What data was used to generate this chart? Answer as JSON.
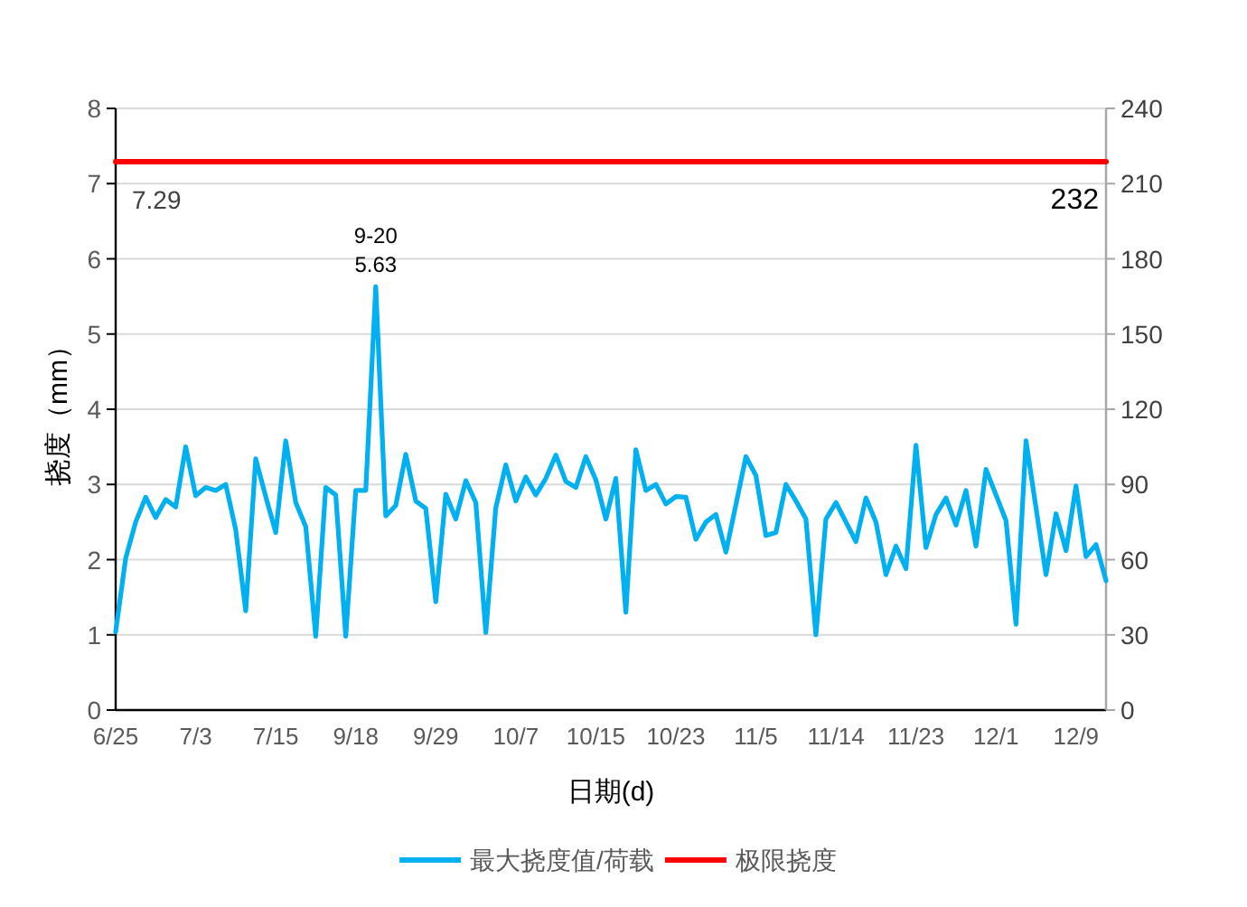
{
  "chart_data": {
    "type": "line",
    "xlabel": "日期(d)",
    "ylabel": "挠度（mm）",
    "categories": [
      "6/25",
      null,
      null,
      null,
      null,
      null,
      null,
      null,
      "7/3",
      null,
      null,
      null,
      null,
      null,
      null,
      null,
      "7/15",
      null,
      null,
      null,
      null,
      null,
      null,
      null,
      "9/18",
      null,
      null,
      null,
      null,
      null,
      null,
      null,
      "9/29",
      null,
      null,
      null,
      null,
      null,
      null,
      null,
      "10/7",
      null,
      null,
      null,
      null,
      null,
      null,
      null,
      "10/15",
      null,
      null,
      null,
      null,
      null,
      null,
      null,
      "10/23",
      null,
      null,
      null,
      null,
      null,
      null,
      null,
      "11/5",
      null,
      null,
      null,
      null,
      null,
      null,
      null,
      "11/14",
      null,
      null,
      null,
      null,
      null,
      null,
      null,
      "11/23",
      null,
      null,
      null,
      null,
      null,
      null,
      null,
      "12/1",
      null,
      null,
      null,
      null,
      null,
      null,
      null,
      "12/9",
      null,
      null,
      null
    ],
    "series": [
      {
        "name": "最大挠度值/荷载",
        "color": "#00b0f0",
        "values": [
          1.04,
          2.02,
          2.5,
          2.83,
          2.56,
          2.8,
          2.7,
          3.5,
          2.85,
          2.96,
          2.92,
          3.0,
          2.4,
          1.32,
          3.34,
          2.84,
          2.36,
          3.58,
          2.76,
          2.44,
          0.98,
          2.96,
          2.86,
          0.98,
          2.92,
          2.92,
          5.63,
          2.58,
          2.72,
          3.4,
          2.78,
          2.68,
          1.44,
          2.87,
          2.54,
          3.05,
          2.76,
          1.03,
          2.69,
          3.26,
          2.78,
          3.1,
          2.86,
          3.08,
          3.39,
          3.04,
          2.96,
          3.37,
          3.06,
          2.54,
          3.08,
          1.3,
          3.46,
          2.92,
          3.0,
          2.74,
          2.84,
          2.83,
          2.27,
          2.5,
          2.6,
          2.1,
          2.73,
          3.37,
          3.12,
          2.32,
          2.36,
          3.0,
          2.78,
          2.54,
          1.0,
          2.54,
          2.76,
          2.5,
          2.24,
          2.82,
          2.5,
          1.8,
          2.18,
          1.88,
          3.52,
          2.16,
          2.6,
          2.82,
          2.46,
          2.92,
          2.18,
          3.2,
          2.86,
          2.52,
          1.14,
          3.58,
          2.69,
          1.8,
          2.61,
          2.12,
          2.98,
          2.04,
          2.2,
          1.72
        ]
      },
      {
        "name": "极限挠度",
        "color": "#ff0000",
        "values": [
          7.29,
          7.29,
          7.29,
          7.29,
          7.29,
          7.29,
          7.29,
          7.29,
          7.29,
          7.29,
          7.29,
          7.29,
          7.29,
          7.29,
          7.29,
          7.29,
          7.29,
          7.29,
          7.29,
          7.29,
          7.29,
          7.29,
          7.29,
          7.29,
          7.29,
          7.29,
          7.29,
          7.29,
          7.29,
          7.29,
          7.29,
          7.29,
          7.29,
          7.29,
          7.29,
          7.29,
          7.29,
          7.29,
          7.29,
          7.29,
          7.29,
          7.29,
          7.29,
          7.29,
          7.29,
          7.29,
          7.29,
          7.29,
          7.29,
          7.29,
          7.29,
          7.29,
          7.29,
          7.29,
          7.29,
          7.29,
          7.29,
          7.29,
          7.29,
          7.29,
          7.29,
          7.29,
          7.29,
          7.29,
          7.29,
          7.29,
          7.29,
          7.29,
          7.29,
          7.29,
          7.29,
          7.29,
          7.29,
          7.29,
          7.29,
          7.29,
          7.29,
          7.29,
          7.29,
          7.29,
          7.29,
          7.29,
          7.29,
          7.29,
          7.29,
          7.29,
          7.29,
          7.29,
          7.29,
          7.29,
          7.29,
          7.29,
          7.29,
          7.29,
          7.29,
          7.29,
          7.29,
          7.29,
          7.29,
          7.29
        ]
      }
    ],
    "annotations": [
      {
        "text": "9-20\n5.63",
        "y": 5.63
      },
      "7.29",
      "232"
    ],
    "ylim": [
      0,
      8
    ],
    "yticks": [
      0,
      1,
      2,
      3,
      4,
      5,
      6,
      7,
      8
    ],
    "y2lim": [
      0,
      240
    ],
    "y2ticks": [
      0,
      30,
      60,
      90,
      120,
      150,
      180,
      210,
      240
    ],
    "grid": "y",
    "legend": "bottom",
    "marker": "none",
    "line_style": "solid"
  }
}
